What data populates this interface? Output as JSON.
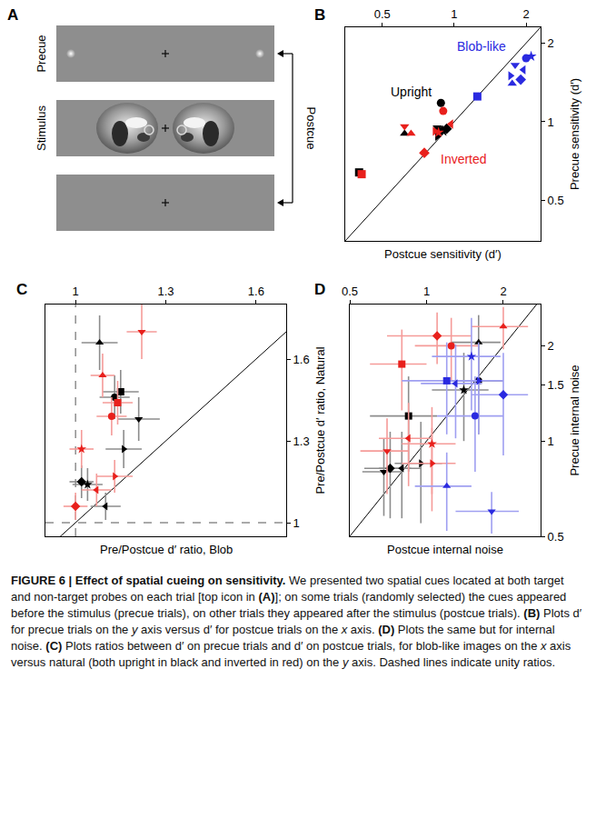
{
  "panel_a": {
    "label": "A",
    "frames": [
      "Precue",
      "Stimulus"
    ],
    "bracket_label": "Postcue"
  },
  "chart_data": [
    {
      "type": "scatter",
      "panel": "B",
      "log": true,
      "grid": false,
      "xlabel": "Postcue sensitivity (d′)",
      "ylabel": "Precue sensitivity (d′)",
      "xlim": [
        0.35,
        2.3
      ],
      "ylim": [
        0.35,
        2.3
      ],
      "xticks": [
        0.5,
        1,
        2
      ],
      "yticks": [
        0.5,
        1,
        2
      ],
      "series": [
        {
          "color": "#000000",
          "marker": [
            "circle",
            "square",
            "triangle-up",
            "triangle-down",
            "diamond",
            "triangle-right",
            "triangle-left",
            "star"
          ],
          "x": [
            0.88,
            0.4,
            0.62,
            0.85,
            0.93,
            0.85,
            0.88,
            0.9
          ],
          "y": [
            1.18,
            0.64,
            0.9,
            0.95,
            0.94,
            0.88,
            0.93,
            0.92
          ]
        },
        {
          "color": "#e8201c",
          "marker": [
            "circle",
            "square",
            "triangle-up",
            "triangle-down",
            "diamond",
            "triangle-right",
            "triangle-left",
            "star"
          ],
          "x": [
            0.9,
            0.41,
            0.66,
            0.62,
            0.75,
            0.83,
            0.97,
            0.86
          ],
          "y": [
            1.1,
            0.63,
            0.9,
            0.96,
            0.76,
            0.92,
            0.98,
            0.91
          ]
        },
        {
          "color": "#2a2ae0",
          "marker": [
            "circle",
            "square",
            "triangle-up",
            "triangle-down",
            "diamond",
            "triangle-right",
            "triangle-left",
            "star"
          ],
          "x": [
            2.0,
            1.25,
            1.75,
            1.8,
            1.9,
            1.72,
            1.95,
            2.1
          ],
          "y": [
            1.75,
            1.25,
            1.4,
            1.65,
            1.45,
            1.5,
            1.58,
            1.78
          ]
        }
      ],
      "annotations": [
        {
          "text": "Blob-like",
          "x": 1.3,
          "y": 1.95,
          "color": "#2a2ae0"
        },
        {
          "text": "Upright",
          "x": 0.66,
          "y": 1.3,
          "color": "#000000"
        },
        {
          "text": "Inverted",
          "x": 1.1,
          "y": 0.72,
          "color": "#e8201c"
        }
      ]
    },
    {
      "type": "scatter",
      "panel": "C",
      "grid": false,
      "xlabel": "Pre/Postcue d′ ratio, Blob",
      "ylabel": "Pre/Postcue d′ ratio, Natural",
      "xlim": [
        0.9,
        1.7
      ],
      "ylim": [
        0.95,
        1.8
      ],
      "xticks": [
        1,
        1.3,
        1.6
      ],
      "yticks": [
        1,
        1.3,
        1.6
      ],
      "reference_lines": [
        {
          "axis": "x",
          "value": 1,
          "line_style": "dash"
        },
        {
          "axis": "y",
          "value": 1,
          "line_style": "dash"
        }
      ],
      "series": [
        {
          "color": "#000000",
          "marker": [
            "triangle-up",
            "circle",
            "square",
            "triangle-down",
            "triangle-right",
            "diamond",
            "star",
            "triangle-left"
          ],
          "x": [
            1.08,
            1.13,
            1.15,
            1.21,
            1.16,
            1.02,
            1.04,
            1.1
          ],
          "y": [
            1.66,
            1.46,
            1.48,
            1.38,
            1.27,
            1.15,
            1.14,
            1.06
          ],
          "xerr": [
            0.06,
            0.05,
            0.06,
            0.07,
            0.06,
            0.04,
            0.05,
            0.05
          ],
          "yerr": [
            0.1,
            0.08,
            0.08,
            0.08,
            0.07,
            0.06,
            0.06,
            0.05
          ]
        },
        {
          "color": "#e8201c",
          "marker": [
            "triangle-down",
            "triangle-up",
            "circle",
            "square",
            "star",
            "triangle-right",
            "triangle-left",
            "diamond"
          ],
          "x": [
            1.22,
            1.09,
            1.12,
            1.14,
            1.02,
            1.13,
            1.07,
            1.0
          ],
          "y": [
            1.7,
            1.54,
            1.39,
            1.44,
            1.27,
            1.17,
            1.12,
            1.06
          ],
          "xerr": [
            0.05,
            0.04,
            0.05,
            0.05,
            0.04,
            0.06,
            0.05,
            0.04
          ],
          "yerr": [
            0.1,
            0.08,
            0.07,
            0.08,
            0.07,
            0.06,
            0.06,
            0.05
          ]
        }
      ]
    },
    {
      "type": "scatter",
      "panel": "D",
      "log": true,
      "grid": false,
      "xlabel": "Postcue internal noise",
      "ylabel": "Precue internal noise",
      "xlim": [
        0.5,
        2.8
      ],
      "ylim": [
        0.5,
        2.7
      ],
      "xticks": [
        0.5,
        1,
        2
      ],
      "yticks": [
        0.5,
        1,
        1.5,
        2
      ],
      "series": [
        {
          "color": "#000000",
          "marker": [
            "triangle-up",
            "circle",
            "star",
            "square",
            "diamond",
            "triangle-down",
            "triangle-left",
            "triangle-right"
          ],
          "x": [
            1.6,
            1.6,
            1.4,
            0.85,
            0.72,
            0.68,
            0.8,
            0.95
          ],
          "y": [
            2.05,
            1.55,
            1.45,
            1.2,
            0.82,
            0.8,
            0.82,
            0.85
          ],
          "xerr": [
            0.35,
            0.4,
            0.35,
            0.25,
            0.15,
            0.12,
            0.15,
            0.2
          ],
          "yerr": [
            0.45,
            0.5,
            0.45,
            0.4,
            0.25,
            0.22,
            0.25,
            0.3
          ]
        },
        {
          "color": "#e8201c",
          "marker": [
            "triangle-up",
            "diamond",
            "circle",
            "square",
            "triangle-left",
            "star",
            "triangle-down",
            "triangle-right"
          ],
          "x": [
            2.0,
            1.1,
            1.25,
            0.8,
            0.85,
            1.05,
            0.7,
            1.05
          ],
          "y": [
            2.3,
            2.15,
            2.0,
            1.75,
            1.02,
            0.98,
            0.93,
            0.85
          ],
          "xerr": [
            0.5,
            0.4,
            0.35,
            0.2,
            0.2,
            0.25,
            0.15,
            0.25
          ],
          "yerr": [
            0.35,
            0.4,
            0.45,
            0.5,
            0.3,
            0.3,
            0.25,
            0.25
          ]
        },
        {
          "color": "#2a2ae0",
          "marker": [
            "star",
            "square",
            "triangle-left",
            "circle",
            "diamond",
            "triangle-up",
            "triangle-down",
            "triangle-right"
          ],
          "x": [
            1.5,
            1.2,
            1.3,
            1.55,
            2.0,
            1.2,
            1.8,
            1.6
          ],
          "y": [
            1.85,
            1.55,
            1.52,
            1.2,
            1.4,
            0.72,
            0.6,
            1.55
          ],
          "xerr": [
            0.45,
            0.4,
            0.35,
            0.45,
            0.5,
            0.3,
            0.5,
            0.4
          ],
          "yerr": [
            0.6,
            0.5,
            0.5,
            0.4,
            0.5,
            0.2,
            0.09,
            0.5
          ]
        }
      ]
    }
  ],
  "caption": {
    "title": "FIGURE 6 | Effect of spatial cueing on sensitivity.",
    "segments": [
      {
        "text": " We presented two spatial cues located at both target and non-target probes on each trial [top icon in ",
        "style": "plain"
      },
      {
        "text": "(A)",
        "style": "bold"
      },
      {
        "text": "]; on some trials (randomly selected) the cues appeared before the stimulus (precue trials), on other trials they appeared after the stimulus (postcue trials). ",
        "style": "plain"
      },
      {
        "text": "(B)",
        "style": "bold"
      },
      {
        "text": " Plots d′ for precue trials on the ",
        "style": "plain"
      },
      {
        "text": "y",
        "style": "italic"
      },
      {
        "text": " axis versus d′ for postcue trials on the ",
        "style": "plain"
      },
      {
        "text": "x",
        "style": "italic"
      },
      {
        "text": " axis. ",
        "style": "plain"
      },
      {
        "text": "(D)",
        "style": "bold"
      },
      {
        "text": " Plots the same but for internal noise. ",
        "style": "plain"
      },
      {
        "text": "(C)",
        "style": "bold"
      },
      {
        "text": " Plots ratios between d′ on precue trials and d′ on postcue trials, for blob-like images on the ",
        "style": "plain"
      },
      {
        "text": "x",
        "style": "italic"
      },
      {
        "text": " axis versus natural (both upright in black and inverted in red) on the ",
        "style": "plain"
      },
      {
        "text": "y",
        "style": "italic"
      },
      {
        "text": " axis. Dashed lines indicate unity ratios.",
        "style": "plain"
      }
    ]
  }
}
